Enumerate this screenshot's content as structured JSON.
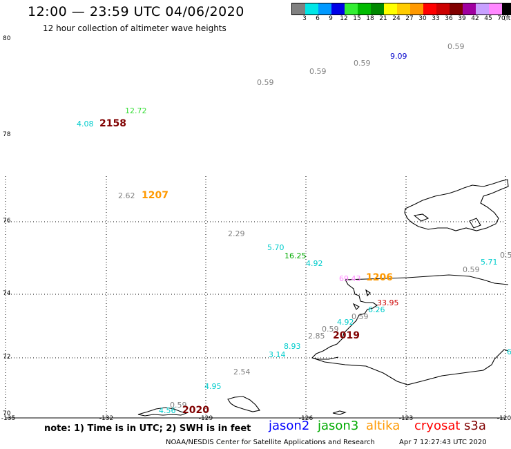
{
  "header": {
    "title": "12:00 — 23:59 UTC 04/06/2020",
    "subtitle": "12 hour collection of altimeter wave heights"
  },
  "legend": {
    "colors": [
      "#808080",
      "#00e6e6",
      "#0099ff",
      "#0000e6",
      "#33ee33",
      "#00bb00",
      "#008800",
      "#ffff00",
      "#ffcc00",
      "#ff9900",
      "#ff0000",
      "#cc0000",
      "#800000",
      "#a000a0",
      "#c8a0ff",
      "#ff88ff",
      "#000000"
    ],
    "labels": [
      "3",
      "6",
      "9",
      "12",
      "15",
      "18",
      "21",
      "24",
      "27",
      "30",
      "33",
      "36",
      "39",
      "42",
      "45",
      "70",
      "(ft)"
    ]
  },
  "axes": {
    "lat_labels": [
      "80",
      "78",
      "76",
      "74",
      "72",
      "70"
    ],
    "lon_labels": [
      "-135",
      "-132",
      "-129",
      "-126",
      "-123",
      "-120"
    ]
  },
  "observations": [
    {
      "text": "0.59",
      "color": "#808080"
    },
    {
      "text": "9.09",
      "color": "#0000cc"
    },
    {
      "text": "0.59",
      "color": "#808080"
    },
    {
      "text": "0.59",
      "color": "#808080"
    },
    {
      "text": "0.59",
      "color": "#808080"
    },
    {
      "text": "12.72",
      "color": "#33dd33"
    },
    {
      "text": "4.08",
      "color": "#00cccc"
    },
    {
      "text": "2.62",
      "color": "#808080"
    },
    {
      "text": "2.29",
      "color": "#808080"
    },
    {
      "text": "5.70",
      "color": "#00cccc"
    },
    {
      "text": "16.25",
      "color": "#00aa00"
    },
    {
      "text": "4.92",
      "color": "#00cccc"
    },
    {
      "text": "5.71",
      "color": "#00cccc"
    },
    {
      "text": "0.5",
      "color": "#808080"
    },
    {
      "text": "0.59",
      "color": "#808080"
    },
    {
      "text": "69.43",
      "color": "#ff88ff"
    },
    {
      "text": "33.95",
      "color": "#cc0000"
    },
    {
      "text": "6.26",
      "color": "#00cccc"
    },
    {
      "text": "0.59",
      "color": "#808080"
    },
    {
      "text": "4.92",
      "color": "#00cccc"
    },
    {
      "text": "0.59",
      "color": "#808080"
    },
    {
      "text": "2.85",
      "color": "#808080"
    },
    {
      "text": "8.93",
      "color": "#00cccc"
    },
    {
      "text": "3.14",
      "color": "#00cccc"
    },
    {
      "text": "6",
      "color": "#00cccc"
    },
    {
      "text": "2.54",
      "color": "#808080"
    },
    {
      "text": "4.95",
      "color": "#00cccc"
    },
    {
      "text": "0.59",
      "color": "#808080"
    },
    {
      "text": "4.56",
      "color": "#00cccc"
    }
  ],
  "pass_times": [
    {
      "text": "2158",
      "color": "#800000"
    },
    {
      "text": "1207",
      "color": "#ff9900"
    },
    {
      "text": "1206",
      "color": "#ff9900"
    },
    {
      "text": "2019",
      "color": "#800000"
    },
    {
      "text": "2020",
      "color": "#800000"
    }
  ],
  "note": "note:  1) Time is in UTC;  2) SWH is in feet",
  "satellites": [
    {
      "name": "jason2",
      "color": "#0000ff"
    },
    {
      "name": "jason3",
      "color": "#00aa00"
    },
    {
      "name": "altika",
      "color": "#ff9900"
    },
    {
      "name": "cryosat",
      "color": "#ff0000"
    },
    {
      "name": "s3a",
      "color": "#800000"
    }
  ],
  "footer": {
    "left": "NOAA/NESDIS Center for Satellite Applications and Research",
    "right": "Apr  7 12:27:43 UTC 2020"
  }
}
